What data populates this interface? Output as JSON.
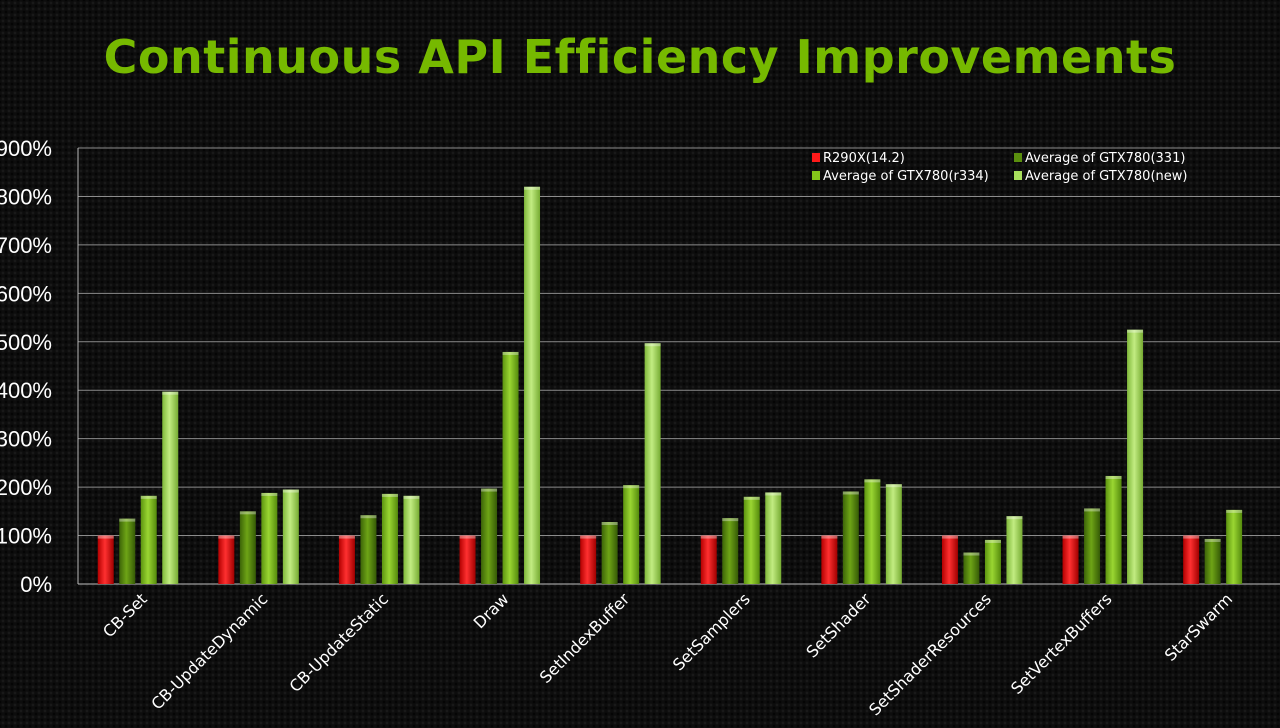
{
  "title": "Continuous API Efficiency Improvements",
  "chart_data": {
    "type": "bar",
    "title": "Continuous API Efficiency Improvements",
    "xlabel": "",
    "ylabel": "",
    "ylim": [
      0,
      900
    ],
    "yticks": [
      "0%",
      "100%",
      "200%",
      "300%",
      "400%",
      "500%",
      "600%",
      "700%",
      "800%",
      "900%"
    ],
    "grid": true,
    "legend_position": "top-right",
    "categories": [
      "CB-Set",
      "CB-UpdateDynamic",
      "CB-UpdateStatic",
      "Draw",
      "SetIndexBuffer",
      "SetSamplers",
      "SetShader",
      "SetShaderResources",
      "SetVertexBuffers",
      "StarSwarm"
    ],
    "series": [
      {
        "name": "R290X(14.2)",
        "color": "#ff1a1a",
        "values": [
          100,
          100,
          100,
          100,
          100,
          100,
          100,
          100,
          100,
          100
        ]
      },
      {
        "name": "Average of GTX780(331)",
        "color": "#5a8f0e",
        "values": [
          135,
          150,
          142,
          197,
          128,
          136,
          191,
          65,
          156,
          93
        ]
      },
      {
        "name": "Average of GTX780(r334)",
        "color": "#84c51a",
        "values": [
          182,
          188,
          186,
          479,
          204,
          180,
          216,
          91,
          223,
          153
        ]
      },
      {
        "name": "Average of GTX780(new)",
        "color": "#a9df5c",
        "values": [
          397,
          195,
          182,
          820,
          497,
          189,
          206,
          140,
          525,
          null
        ]
      }
    ]
  }
}
